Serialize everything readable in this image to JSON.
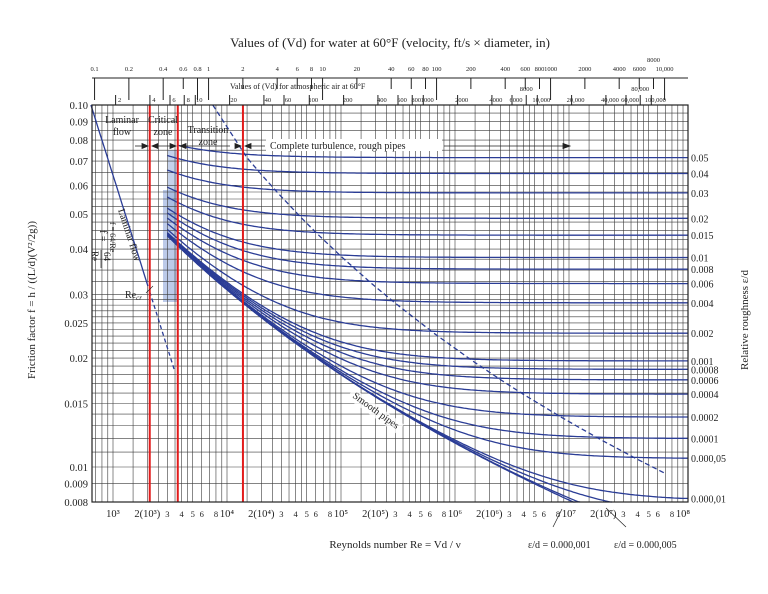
{
  "chart_data": {
    "type": "line",
    "x_scale": "log",
    "y_scale": "log",
    "xlim": [
      650,
      110000000
    ],
    "ylim": [
      0.008,
      0.1
    ],
    "grid": true,
    "title": "Values of (Vd) for water at 60°F (velocity, ft/s × diameter, in)",
    "air_scale_title": "Values of (Vd) for atmospheric air at 60°F",
    "xlabel": "Reynolds number Re = Vd / ν",
    "ylabel": "Friction factor f = h / ((L/d)(V²/2g))",
    "right_label": "Relative roughness ε/d",
    "y_ticks": [
      "0.10",
      "0.09",
      "0.08",
      "0.07",
      "0.06",
      "0.05",
      "0.04",
      "0.03",
      "0.025",
      "0.02",
      "0.015",
      "0.01",
      "0.009",
      "0.008"
    ],
    "x_ticks": [
      {
        "re": 1000,
        "label": "10³"
      },
      {
        "re": 2000,
        "label": "2(10³)"
      },
      {
        "re": 3000,
        "label": "3"
      },
      {
        "re": 4000,
        "label": "4"
      },
      {
        "re": 5000,
        "label": "5"
      },
      {
        "re": 6000,
        "label": "6"
      },
      {
        "re": 8000,
        "label": "8"
      },
      {
        "re": 10000,
        "label": "10⁴"
      },
      {
        "re": 20000,
        "label": "2(10⁴)"
      },
      {
        "re": 30000,
        "label": "3"
      },
      {
        "re": 40000,
        "label": "4"
      },
      {
        "re": 50000,
        "label": "5"
      },
      {
        "re": 60000,
        "label": "6"
      },
      {
        "re": 80000,
        "label": "8"
      },
      {
        "re": 100000,
        "label": "10⁵"
      },
      {
        "re": 200000,
        "label": "2(10⁵)"
      },
      {
        "re": 300000,
        "label": "3"
      },
      {
        "re": 400000,
        "label": "4"
      },
      {
        "re": 500000,
        "label": "5"
      },
      {
        "re": 600000,
        "label": "6"
      },
      {
        "re": 800000,
        "label": "8"
      },
      {
        "re": 1000000,
        "label": "10⁶"
      },
      {
        "re": 2000000,
        "label": "2(10⁶)"
      },
      {
        "re": 3000000,
        "label": "3"
      },
      {
        "re": 4000000,
        "label": "4"
      },
      {
        "re": 5000000,
        "label": "5"
      },
      {
        "re": 6000000,
        "label": "6"
      },
      {
        "re": 8000000,
        "label": "8"
      },
      {
        "re": 10000000,
        "label": "10⁷"
      },
      {
        "re": 20000000,
        "label": "2(10⁷)"
      },
      {
        "re": 30000000,
        "label": "3"
      },
      {
        "re": 40000000,
        "label": "4"
      },
      {
        "re": 50000000,
        "label": "5"
      },
      {
        "re": 60000000,
        "label": "6"
      },
      {
        "re": 80000000,
        "label": "8"
      },
      {
        "re": 100000000,
        "label": "10⁸"
      }
    ],
    "water_vd_ticks": [
      "0.1",
      "0.2",
      "0.4",
      "0.6",
      "0.8",
      "1",
      "2",
      "4",
      "6",
      "8",
      "10",
      "20",
      "40",
      "60",
      "80",
      "100",
      "200",
      "400",
      "600",
      "800",
      "1000",
      "2000",
      "4000",
      "6000",
      "8000",
      "10,000"
    ],
    "air_vd_ticks": [
      "2",
      "4",
      "6",
      "8",
      "10",
      "20",
      "40",
      "60",
      "100",
      "200",
      "400",
      "600",
      "800",
      "1000",
      "2000",
      "4000",
      "6000",
      "8000",
      "10,000",
      "20,000",
      "40,000",
      "60,000",
      "80,000",
      "100,000"
    ],
    "relative_roughness_series": [
      {
        "eps": 0.05,
        "label": "0.05"
      },
      {
        "eps": 0.04,
        "label": "0.04"
      },
      {
        "eps": 0.03,
        "label": "0.03"
      },
      {
        "eps": 0.02,
        "label": "0.02"
      },
      {
        "eps": 0.015,
        "label": "0.015"
      },
      {
        "eps": 0.01,
        "label": "0.01"
      },
      {
        "eps": 0.008,
        "label": "0.008"
      },
      {
        "eps": 0.006,
        "label": "0.006"
      },
      {
        "eps": 0.004,
        "label": "0.004"
      },
      {
        "eps": 0.002,
        "label": "0.002"
      },
      {
        "eps": 0.001,
        "label": "0.001"
      },
      {
        "eps": 0.0008,
        "label": "0.0008"
      },
      {
        "eps": 0.0006,
        "label": "0.0006"
      },
      {
        "eps": 0.0004,
        "label": "0.0004"
      },
      {
        "eps": 0.0002,
        "label": "0.0002"
      },
      {
        "eps": 0.0001,
        "label": "0.0001"
      },
      {
        "eps": 5e-05,
        "label": "0.000,05"
      },
      {
        "eps": 1e-05,
        "label": "0.000,01"
      }
    ],
    "extra_series": [
      {
        "eps": 5e-06,
        "label": "ε/d = 0.000,005"
      },
      {
        "eps": 1e-06,
        "label": "ε/d = 0.000,001"
      },
      {
        "eps": 0,
        "label": "Smooth pipes"
      }
    ],
    "laminar": {
      "formula": "f = 64/Re",
      "label": "Laminar flow"
    },
    "zone_boundaries_re": [
      2100,
      3700,
      13800
    ],
    "colors": {
      "curves": "#2b3d96",
      "zone_lines": "#e21b1b",
      "shading": "#9fb4e0"
    }
  },
  "annotations": {
    "laminar_zone": [
      "Laminar",
      "flow"
    ],
    "critical_zone": [
      "Critical",
      "zone"
    ],
    "transition_zone": [
      "Transition",
      "zone"
    ],
    "complete_turbulence": "Complete turbulence, rough pipes",
    "re_cr": "Re",
    "re_cr_sub": "cr",
    "laminar_formula_f": "f =",
    "laminar_formula_num": "64",
    "laminar_formula_den": "Re"
  }
}
